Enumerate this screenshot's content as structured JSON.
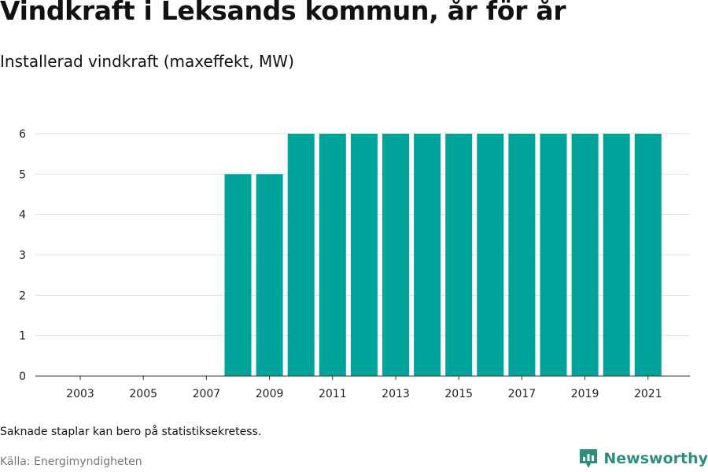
{
  "header": {
    "title": "Vindkraft i Leksands kommun, år för år",
    "subtitle": "Installerad vindkraft (maxeffekt, MW)"
  },
  "footer": {
    "note": "Saknade staplar kan bero på statistiksekretess.",
    "source": "Källa: Energimyndigheten",
    "brand": "Newsworthy"
  },
  "colors": {
    "bar": "#00a39a",
    "brand": "#2c8f7f",
    "grid": "#e0e0e0"
  },
  "chart_data": {
    "type": "bar",
    "title": "Vindkraft i Leksands kommun, år för år",
    "subtitle": "Installerad vindkraft (maxeffekt, MW)",
    "categories": [
      "2003",
      "2004",
      "2005",
      "2006",
      "2007",
      "2008",
      "2009",
      "2010",
      "2011",
      "2012",
      "2013",
      "2014",
      "2015",
      "2016",
      "2017",
      "2018",
      "2019",
      "2020",
      "2021"
    ],
    "values": [
      0,
      0,
      0,
      0,
      0,
      5,
      5,
      6,
      6,
      6,
      6,
      6,
      6,
      6,
      6,
      6,
      6,
      6,
      6
    ],
    "x_tick_labels": [
      "2003",
      "2005",
      "2007",
      "2009",
      "2011",
      "2013",
      "2015",
      "2017",
      "2019",
      "2021"
    ],
    "y_ticks": [
      0,
      1,
      2,
      3,
      4,
      5,
      6
    ],
    "ylim": [
      0,
      6
    ],
    "xlabel": "",
    "ylabel": "",
    "grid": true,
    "legend": "none"
  }
}
